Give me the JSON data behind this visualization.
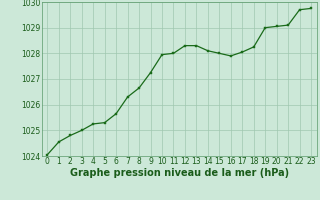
{
  "x": [
    0,
    1,
    2,
    3,
    4,
    5,
    6,
    7,
    8,
    9,
    10,
    11,
    12,
    13,
    14,
    15,
    16,
    17,
    18,
    19,
    20,
    21,
    22,
    23
  ],
  "y": [
    1024.05,
    1024.55,
    1024.8,
    1025.0,
    1025.25,
    1025.3,
    1025.65,
    1026.3,
    1026.65,
    1027.25,
    1027.95,
    1028.0,
    1028.3,
    1028.3,
    1028.1,
    1028.0,
    1027.9,
    1028.05,
    1028.25,
    1029.0,
    1029.05,
    1029.1,
    1029.7,
    1029.75
  ],
  "line_color": "#1a6b1a",
  "marker_color": "#1a6b1a",
  "bg_color": "#cce8d8",
  "grid_color": "#a0c8b0",
  "xlabel": "Graphe pression niveau de la mer (hPa)",
  "xlabel_color": "#1a5c1a",
  "ylim": [
    1024,
    1030
  ],
  "xlim_min": -0.5,
  "xlim_max": 23.5,
  "yticks": [
    1024,
    1025,
    1026,
    1027,
    1028,
    1029,
    1030
  ],
  "xticks": [
    0,
    1,
    2,
    3,
    4,
    5,
    6,
    7,
    8,
    9,
    10,
    11,
    12,
    13,
    14,
    15,
    16,
    17,
    18,
    19,
    20,
    21,
    22,
    23
  ],
  "tick_color": "#1a5c1a",
  "tick_fontsize": 5.5,
  "xlabel_fontsize": 7.0,
  "spine_color": "#5a9a6a"
}
